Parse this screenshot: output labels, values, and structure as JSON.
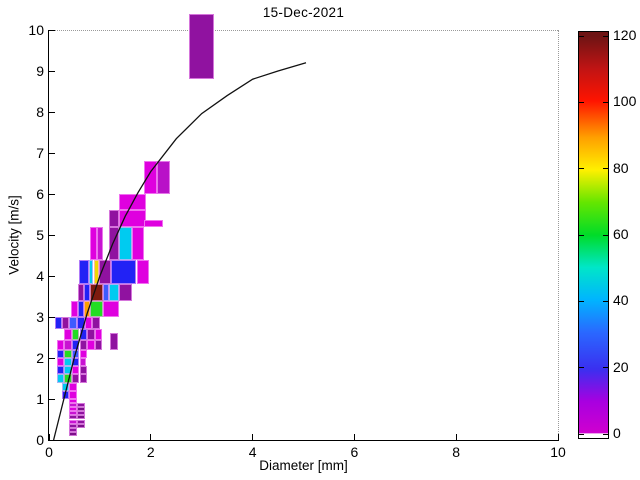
{
  "title": "15-Dec-2021",
  "axes": {
    "xlabel": "Diameter [mm]",
    "ylabel": "Velocity [m/s]",
    "xlim": [
      0,
      10
    ],
    "ylim": [
      0,
      10
    ],
    "xticks": [
      0,
      2,
      4,
      6,
      8,
      10
    ],
    "yticks": [
      0,
      1,
      2,
      3,
      4,
      5,
      6,
      7,
      8,
      9,
      10
    ]
  },
  "colorbar": {
    "min": 0,
    "max": 120,
    "ticks": [
      0,
      20,
      40,
      60,
      80,
      100,
      120
    ],
    "stops": [
      [
        0,
        "#FFFFFF"
      ],
      [
        1,
        "#FFFFFF"
      ],
      [
        1.3,
        "#CF00CF"
      ],
      [
        9,
        "#A800E0"
      ],
      [
        17,
        "#3A30F0"
      ],
      [
        26,
        "#2A68FF"
      ],
      [
        34,
        "#00B4FF"
      ],
      [
        42,
        "#00E6C8"
      ],
      [
        50,
        "#00DC28"
      ],
      [
        58,
        "#64E600"
      ],
      [
        66,
        "#FFF000"
      ],
      [
        74,
        "#FFA000"
      ],
      [
        83,
        "#FF1400"
      ],
      [
        91,
        "#C01414"
      ],
      [
        99,
        "#6E1414"
      ],
      [
        100,
        "#6E1414"
      ]
    ]
  },
  "palette": {
    "MAG": "#DF00DF",
    "MAG2": "#C813D2",
    "MAG3": "#B911C8",
    "PUR": "#9012A0",
    "PUR2": "#7C0E8A",
    "BLU": "#2222F5",
    "BLU2": "#3D5BFF",
    "CYA": "#00CBF0",
    "GRN": "#22DD22",
    "YEL": "#F0D800",
    "ORA": "#FFA100",
    "DRD": "#7E1B10"
  },
  "chart_data": {
    "type": "heatmap",
    "title": "15-Dec-2021",
    "xlabel": "Diameter [mm]",
    "ylabel": "Velocity [m/s]",
    "xlim": [
      0,
      10
    ],
    "ylim": [
      0,
      10
    ],
    "colorbar_range": [
      0,
      120
    ],
    "legend": "none",
    "cells": [
      [
        2.75,
        3.25,
        8.8,
        10.4,
        10,
        "PUR"
      ],
      [
        1.875,
        2.125,
        6.0,
        6.8,
        4,
        "MAG"
      ],
      [
        2.125,
        2.375,
        6.0,
        6.8,
        9,
        "MAG3"
      ],
      [
        1.375,
        1.9,
        5.6,
        6.0,
        4,
        "MAG"
      ],
      [
        1.1875,
        1.375,
        5.2,
        5.6,
        10,
        "PUR"
      ],
      [
        1.375,
        1.9,
        5.2,
        5.6,
        4,
        "MAG"
      ],
      [
        1.87,
        2.24,
        5.2,
        5.36,
        5,
        "MAG"
      ],
      [
        0.8125,
        0.9375,
        4.4,
        5.2,
        4,
        "MAG"
      ],
      [
        0.9375,
        1.0625,
        4.4,
        5.2,
        8,
        "MAG2"
      ],
      [
        1.1875,
        1.375,
        4.4,
        5.2,
        10,
        "PUR"
      ],
      [
        1.375,
        1.625,
        4.4,
        5.2,
        44,
        "CYA"
      ],
      [
        1.625,
        1.875,
        4.4,
        5.2,
        4,
        "MAG"
      ],
      [
        0.59,
        0.79,
        3.8,
        4.4,
        24,
        "BLU"
      ],
      [
        0.79,
        0.875,
        3.8,
        4.4,
        44,
        "CYA"
      ],
      [
        0.875,
        0.99,
        3.8,
        4.4,
        80,
        "YEL"
      ],
      [
        0.99,
        1.22,
        3.8,
        4.4,
        10,
        "PUR"
      ],
      [
        1.22,
        1.72,
        3.8,
        4.4,
        24,
        "BLU"
      ],
      [
        1.72,
        1.97,
        3.8,
        4.4,
        4,
        "MAG"
      ],
      [
        0.5625,
        0.6875,
        3.4,
        3.8,
        10,
        "PUR"
      ],
      [
        0.6875,
        0.8125,
        3.4,
        3.8,
        24,
        "BLU"
      ],
      [
        0.8125,
        1.0625,
        3.4,
        3.8,
        118,
        "DRD"
      ],
      [
        1.0625,
        1.1875,
        3.4,
        3.8,
        30,
        "BLU2"
      ],
      [
        1.1875,
        1.375,
        3.4,
        3.8,
        44,
        "CYA"
      ],
      [
        1.375,
        1.625,
        3.4,
        3.8,
        10,
        "PUR"
      ],
      [
        0.4375,
        0.5625,
        3.0,
        3.4,
        4,
        "MAG"
      ],
      [
        0.5625,
        0.6875,
        3.0,
        3.4,
        24,
        "BLU"
      ],
      [
        0.6875,
        0.8125,
        3.0,
        3.4,
        88,
        "ORA"
      ],
      [
        0.8125,
        1.0625,
        3.0,
        3.4,
        62,
        "GRN"
      ],
      [
        1.0625,
        1.375,
        3.0,
        3.4,
        4,
        "MAG"
      ],
      [
        0.125,
        0.25,
        2.7,
        3.0,
        24,
        "BLU"
      ],
      [
        0.25,
        0.4,
        2.7,
        3.0,
        10,
        "PUR"
      ],
      [
        0.4,
        0.55,
        2.7,
        3.0,
        30,
        "BLU2"
      ],
      [
        0.55,
        0.7,
        2.7,
        3.0,
        24,
        "BLU"
      ],
      [
        0.7,
        0.85,
        2.7,
        3.0,
        4,
        "MAG"
      ],
      [
        0.85,
        1.0,
        2.7,
        3.0,
        10,
        "PUR"
      ],
      [
        0.3,
        0.45,
        2.45,
        2.7,
        4,
        "MAG"
      ],
      [
        0.45,
        0.6,
        2.45,
        2.7,
        62,
        "GRN"
      ],
      [
        0.6,
        0.75,
        2.45,
        2.7,
        24,
        "BLU"
      ],
      [
        0.75,
        0.9,
        2.45,
        2.7,
        10,
        "PUR"
      ],
      [
        0.9,
        1.05,
        2.45,
        2.7,
        4,
        "MAG"
      ],
      [
        0.15,
        0.3,
        2.2,
        2.45,
        4,
        "MAG"
      ],
      [
        0.3,
        0.45,
        2.2,
        2.45,
        8,
        "MAG2"
      ],
      [
        0.45,
        0.6,
        2.2,
        2.45,
        24,
        "BLU"
      ],
      [
        0.6,
        0.75,
        2.2,
        2.45,
        10,
        "PUR"
      ],
      [
        0.75,
        0.9,
        2.2,
        2.45,
        4,
        "MAG"
      ],
      [
        0.9,
        1.05,
        2.2,
        2.45,
        10,
        "PUR"
      ],
      [
        1.19,
        1.36,
        2.2,
        2.6,
        10,
        "PUR"
      ],
      [
        0.15,
        0.3,
        2.0,
        2.2,
        24,
        "BLU"
      ],
      [
        0.3,
        0.45,
        2.0,
        2.2,
        62,
        "GRN"
      ],
      [
        0.45,
        0.6,
        2.0,
        2.2,
        30,
        "BLU2"
      ],
      [
        0.6,
        0.75,
        2.0,
        2.2,
        4,
        "MAG"
      ],
      [
        0.15,
        0.3,
        1.8,
        2.0,
        4,
        "MAG"
      ],
      [
        0.3,
        0.45,
        1.8,
        2.0,
        44,
        "CYA"
      ],
      [
        0.45,
        0.6,
        1.8,
        2.0,
        24,
        "BLU"
      ],
      [
        0.6,
        0.72,
        1.8,
        2.0,
        8,
        "MAG2"
      ],
      [
        0.15,
        0.3,
        1.6,
        1.8,
        24,
        "BLU"
      ],
      [
        0.3,
        0.45,
        1.6,
        1.8,
        44,
        "CYA"
      ],
      [
        0.45,
        0.6,
        1.6,
        1.8,
        4,
        "MAG"
      ],
      [
        0.6,
        0.75,
        1.6,
        1.8,
        10,
        "PUR"
      ],
      [
        0.15,
        0.3,
        1.4,
        1.6,
        44,
        "CYA"
      ],
      [
        0.3,
        0.45,
        1.4,
        1.6,
        62,
        "GRN"
      ],
      [
        0.45,
        0.6,
        1.4,
        1.6,
        10,
        "PUR"
      ],
      [
        0.6,
        0.75,
        1.4,
        1.6,
        10,
        "PUR"
      ],
      [
        0.25,
        0.4,
        1.2,
        1.4,
        44,
        "CYA"
      ],
      [
        0.4,
        0.55,
        1.2,
        1.4,
        4,
        "MAG"
      ],
      [
        0.25,
        0.4,
        1.0,
        1.2,
        24,
        "BLU"
      ],
      [
        0.4,
        0.55,
        1.0,
        1.2,
        4,
        "MAG"
      ],
      [
        0.4,
        0.55,
        0.9,
        1.0,
        4,
        "MAG"
      ],
      [
        0.4,
        0.55,
        0.8,
        0.9,
        8,
        "MAG2"
      ],
      [
        0.4,
        0.55,
        0.7,
        0.8,
        4,
        "MAG"
      ],
      [
        0.4,
        0.55,
        0.6,
        0.7,
        8,
        "MAG2"
      ],
      [
        0.4,
        0.55,
        0.5,
        0.6,
        10,
        "PUR"
      ],
      [
        0.4,
        0.55,
        0.4,
        0.5,
        8,
        "MAG2"
      ],
      [
        0.4,
        0.55,
        0.3,
        0.4,
        10,
        "PUR"
      ],
      [
        0.4,
        0.55,
        0.2,
        0.3,
        10,
        "PUR"
      ],
      [
        0.4,
        0.55,
        0.1,
        0.2,
        12,
        "PUR2"
      ],
      [
        0.55,
        0.7,
        0.8,
        0.9,
        10,
        "PUR"
      ],
      [
        0.55,
        0.7,
        0.7,
        0.8,
        12,
        "PUR2"
      ],
      [
        0.55,
        0.7,
        0.6,
        0.7,
        10,
        "PUR"
      ],
      [
        0.55,
        0.7,
        0.5,
        0.6,
        12,
        "PUR2"
      ],
      [
        0.55,
        0.7,
        0.4,
        0.5,
        10,
        "PUR"
      ],
      [
        0.55,
        0.7,
        0.3,
        0.4,
        12,
        "PUR2"
      ]
    ],
    "curve": {
      "name": "terminal-fall-velocity-curve",
      "points": [
        [
          0.09,
          0.0
        ],
        [
          0.25,
          0.79
        ],
        [
          0.5,
          2.02
        ],
        [
          0.75,
          3.09
        ],
        [
          1.0,
          4.0
        ],
        [
          1.25,
          4.78
        ],
        [
          1.5,
          5.46
        ],
        [
          1.75,
          6.04
        ],
        [
          2.0,
          6.55
        ],
        [
          2.5,
          7.35
        ],
        [
          3.0,
          7.96
        ],
        [
          3.5,
          8.4
        ],
        [
          4.0,
          8.8
        ],
        [
          4.5,
          9.0
        ],
        [
          5.05,
          9.2
        ]
      ]
    }
  }
}
